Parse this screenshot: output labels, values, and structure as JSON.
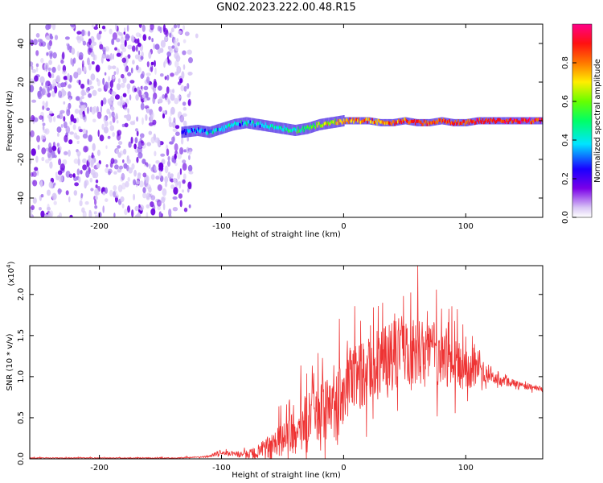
{
  "title": "GN02.2023.222.00.48.R15",
  "chart_data": [
    {
      "type": "heatmap",
      "xlabel": "Height of straight line (km)",
      "ylabel": "Frequency (Hz)",
      "xlim": [
        -257,
        163
      ],
      "ylim": [
        -50,
        50
      ],
      "x_ticks": [
        -200,
        -100,
        0,
        100
      ],
      "y_ticks": [
        -40,
        -20,
        0,
        20,
        40
      ],
      "noise_region_km": [
        -257,
        -125
      ],
      "signal_track": {
        "x": [
          -133,
          -120,
          -110,
          -100,
          -90,
          -80,
          -70,
          -60,
          -50,
          -40,
          -30,
          -20,
          -10,
          0,
          10,
          20,
          30,
          40,
          50,
          60,
          70,
          80,
          90,
          100,
          110,
          120,
          130,
          140,
          150,
          163
        ],
        "frequency": [
          -6,
          -5,
          -6,
          -4,
          -2,
          -1,
          -2,
          -3,
          -4,
          -5,
          -4,
          -2,
          -1,
          0,
          0,
          0,
          -1,
          -1,
          0,
          -1,
          -1,
          0,
          -1,
          -1,
          0,
          0,
          0,
          0,
          0,
          0
        ],
        "amplitude": [
          0.35,
          0.4,
          0.42,
          0.45,
          0.45,
          0.42,
          0.45,
          0.48,
          0.5,
          0.55,
          0.6,
          0.7,
          0.75,
          0.8,
          0.85,
          0.85,
          0.85,
          0.88,
          0.9,
          0.9,
          0.9,
          0.9,
          0.9,
          0.9,
          0.92,
          0.95,
          0.95,
          0.95,
          0.95,
          0.95
        ]
      },
      "colorbar": {
        "label": "Normalized spectral amplitude",
        "range": [
          0,
          1
        ],
        "ticks": [
          "0.0",
          "0.2",
          "0.4",
          "0.6",
          "0.8"
        ]
      }
    },
    {
      "type": "line",
      "xlabel": "Height of straight line (km)",
      "ylabel": "SNR (10 * v/v)",
      "y_multiplier": "(x10",
      "y_multiplier_exp": "4",
      "xlim": [
        -257,
        163
      ],
      "ylim": [
        0,
        2.35
      ],
      "x_ticks": [
        -200,
        -100,
        0,
        100
      ],
      "y_ticks": [
        "0.0",
        "0.5",
        "1.0",
        "1.5",
        "2.0"
      ],
      "series": [
        {
          "color": "#ee3333",
          "x": [
            -257,
            -220,
            -180,
            -140,
            -120,
            -110,
            -105,
            -100,
            -90,
            -80,
            -70,
            -60,
            -50,
            -40,
            -30,
            -20,
            -10,
            0,
            10,
            20,
            30,
            40,
            50,
            60,
            70,
            80,
            90,
            100,
            110,
            120,
            130,
            140,
            150,
            163
          ],
          "mean": [
            0.01,
            0.01,
            0.01,
            0.01,
            0.02,
            0.03,
            0.06,
            0.08,
            0.06,
            0.05,
            0.08,
            0.15,
            0.25,
            0.3,
            0.45,
            0.55,
            0.6,
            0.85,
            1.0,
            1.05,
            1.15,
            1.25,
            1.35,
            1.3,
            1.3,
            1.25,
            1.15,
            1.1,
            1.05,
            1.0,
            0.95,
            0.92,
            0.88,
            0.85
          ],
          "spread": [
            0.01,
            0.01,
            0.01,
            0.01,
            0.01,
            0.02,
            0.04,
            0.04,
            0.05,
            0.08,
            0.15,
            0.25,
            0.35,
            0.45,
            0.55,
            0.65,
            0.65,
            0.7,
            0.7,
            0.7,
            0.7,
            0.7,
            0.75,
            0.75,
            0.7,
            0.6,
            0.5,
            0.45,
            0.25,
            0.12,
            0.1,
            0.08,
            0.06,
            0.05
          ]
        }
      ]
    }
  ]
}
